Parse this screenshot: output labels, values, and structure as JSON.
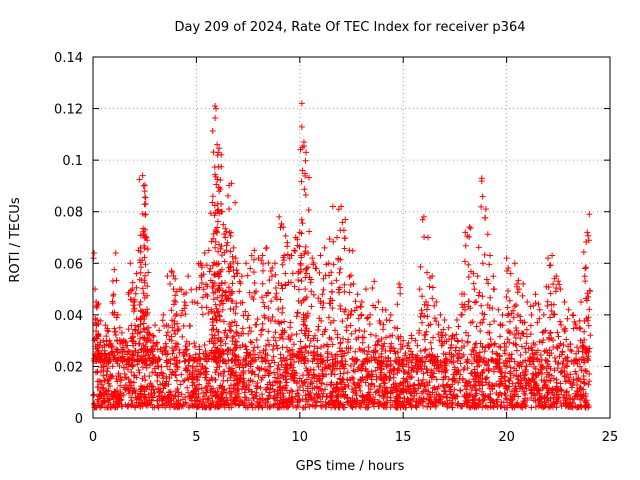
{
  "chart_data": {
    "type": "scatter",
    "title": "Day 209 of 2024, Rate Of TEC Index for receiver p364",
    "xlabel": "GPS time / hours",
    "ylabel": "ROTI / TECUs",
    "xlim": [
      0,
      25
    ],
    "ylim": [
      0,
      0.14
    ],
    "xticks": [
      0,
      5,
      10,
      15,
      20,
      25
    ],
    "yticks": [
      0,
      0.02,
      0.04,
      0.06,
      0.08,
      0.1,
      0.12,
      0.14
    ],
    "xtick_labels": [
      "0",
      "5",
      "10",
      "15",
      "20",
      "25"
    ],
    "ytick_labels": [
      "0",
      "0.02",
      "0.04",
      "0.06",
      "0.08",
      "0.1",
      "0.12",
      "0.14"
    ],
    "grid": true,
    "marker": "+",
    "color": "#ff0000",
    "series": [
      {
        "name": "ROTI",
        "x": [
          0.05,
          0.1,
          0.15,
          0.2,
          0.25,
          0.3,
          0.4,
          0.5,
          0.6,
          0.7,
          0.8,
          0.9,
          1.0,
          1.1,
          1.2,
          1.3,
          1.4,
          1.5,
          1.6,
          1.7,
          1.8,
          1.9,
          2.0,
          2.1,
          2.2,
          2.3,
          2.4,
          2.45,
          2.5,
          2.55,
          2.6,
          2.7,
          2.8,
          2.9,
          3.0,
          3.2,
          3.4,
          3.6,
          3.8,
          3.9,
          4.0,
          4.2,
          4.4,
          4.6,
          4.8,
          5.0,
          5.2,
          5.4,
          5.6,
          5.8,
          5.9,
          5.95,
          6.0,
          6.05,
          6.1,
          6.2,
          6.3,
          6.4,
          6.5,
          6.6,
          6.7,
          6.8,
          6.9,
          7.0,
          7.2,
          7.4,
          7.6,
          7.8,
          8.0,
          8.2,
          8.4,
          8.6,
          8.8,
          9.0,
          9.2,
          9.4,
          9.6,
          9.8,
          10.0,
          10.1,
          10.2,
          10.3,
          10.4,
          10.6,
          10.8,
          11.0,
          11.2,
          11.4,
          11.6,
          11.8,
          12.0,
          12.2,
          12.4,
          12.6,
          12.8,
          13.0,
          13.2,
          13.4,
          13.6,
          13.8,
          14.0,
          14.2,
          14.4,
          14.6,
          14.8,
          15.0,
          15.2,
          15.4,
          15.6,
          15.8,
          16.0,
          16.2,
          16.4,
          16.6,
          16.8,
          17.0,
          17.2,
          17.4,
          17.6,
          17.8,
          18.0,
          18.2,
          18.4,
          18.6,
          18.8,
          19.0,
          19.2,
          19.4,
          19.6,
          19.8,
          20.0,
          20.2,
          20.4,
          20.6,
          20.8,
          21.0,
          21.2,
          21.4,
          21.6,
          21.8,
          22.0,
          22.2,
          22.4,
          22.6,
          22.8,
          23.0,
          23.2,
          23.4,
          23.6,
          23.8,
          23.9,
          24.0
        ],
        "y": [
          0.064,
          0.05,
          0.045,
          0.038,
          0.032,
          0.028,
          0.025,
          0.03,
          0.036,
          0.034,
          0.03,
          0.028,
          0.048,
          0.064,
          0.04,
          0.035,
          0.033,
          0.03,
          0.028,
          0.026,
          0.06,
          0.05,
          0.045,
          0.056,
          0.065,
          0.066,
          0.094,
          0.09,
          0.088,
          0.083,
          0.04,
          0.035,
          0.03,
          0.032,
          0.036,
          0.034,
          0.04,
          0.055,
          0.057,
          0.05,
          0.045,
          0.05,
          0.048,
          0.055,
          0.045,
          0.05,
          0.06,
          0.064,
          0.065,
          0.086,
          0.121,
          0.12,
          0.106,
          0.103,
          0.088,
          0.08,
          0.075,
          0.07,
          0.068,
          0.072,
          0.091,
          0.066,
          0.062,
          0.06,
          0.055,
          0.06,
          0.058,
          0.065,
          0.062,
          0.063,
          0.066,
          0.057,
          0.06,
          0.078,
          0.074,
          0.068,
          0.063,
          0.07,
          0.072,
          0.122,
          0.107,
          0.103,
          0.064,
          0.062,
          0.058,
          0.063,
          0.066,
          0.06,
          0.082,
          0.07,
          0.082,
          0.077,
          0.065,
          0.052,
          0.048,
          0.045,
          0.05,
          0.04,
          0.053,
          0.045,
          0.042,
          0.038,
          0.04,
          0.035,
          0.052,
          0.03,
          0.028,
          0.032,
          0.03,
          0.05,
          0.078,
          0.07,
          0.055,
          0.045,
          0.04,
          0.038,
          0.035,
          0.032,
          0.038,
          0.04,
          0.072,
          0.074,
          0.056,
          0.055,
          0.093,
          0.081,
          0.063,
          0.05,
          0.042,
          0.04,
          0.062,
          0.056,
          0.06,
          0.05,
          0.052,
          0.045,
          0.04,
          0.048,
          0.042,
          0.04,
          0.062,
          0.063,
          0.055,
          0.05,
          0.045,
          0.042,
          0.04,
          0.035,
          0.045,
          0.058,
          0.072,
          0.079
        ]
      }
    ],
    "baseline_band": {
      "x_range": [
        0,
        24
      ],
      "y_range": [
        0.004,
        0.022
      ]
    }
  }
}
